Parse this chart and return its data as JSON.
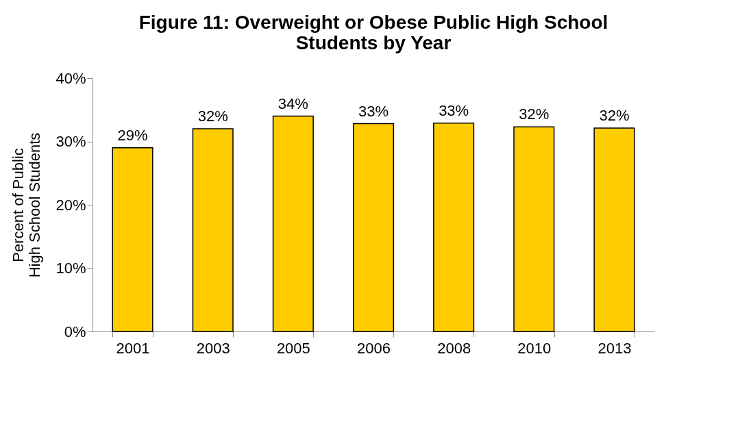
{
  "chart_data": {
    "type": "bar",
    "title": "Figure 11: Overweight or Obese Public High School\nStudents by Year",
    "ylabel": "Percent of Public\nHigh School Students",
    "categories": [
      "2001",
      "2003",
      "2005",
      "2006",
      "2008",
      "2010",
      "2013"
    ],
    "values": [
      29,
      32,
      34,
      32.8,
      32.9,
      32.3,
      32.1
    ],
    "value_labels": [
      "29%",
      "32%",
      "34%",
      "33%",
      "33%",
      "32%",
      "32%"
    ],
    "color": "#ffcc00",
    "ylim": [
      0,
      40
    ],
    "yticks": [
      {
        "value": 0,
        "label": "0%"
      },
      {
        "value": 10,
        "label": "10%"
      },
      {
        "value": 20,
        "label": "20%"
      },
      {
        "value": 30,
        "label": "30%"
      },
      {
        "value": 40,
        "label": "40%"
      }
    ],
    "grid": false
  }
}
